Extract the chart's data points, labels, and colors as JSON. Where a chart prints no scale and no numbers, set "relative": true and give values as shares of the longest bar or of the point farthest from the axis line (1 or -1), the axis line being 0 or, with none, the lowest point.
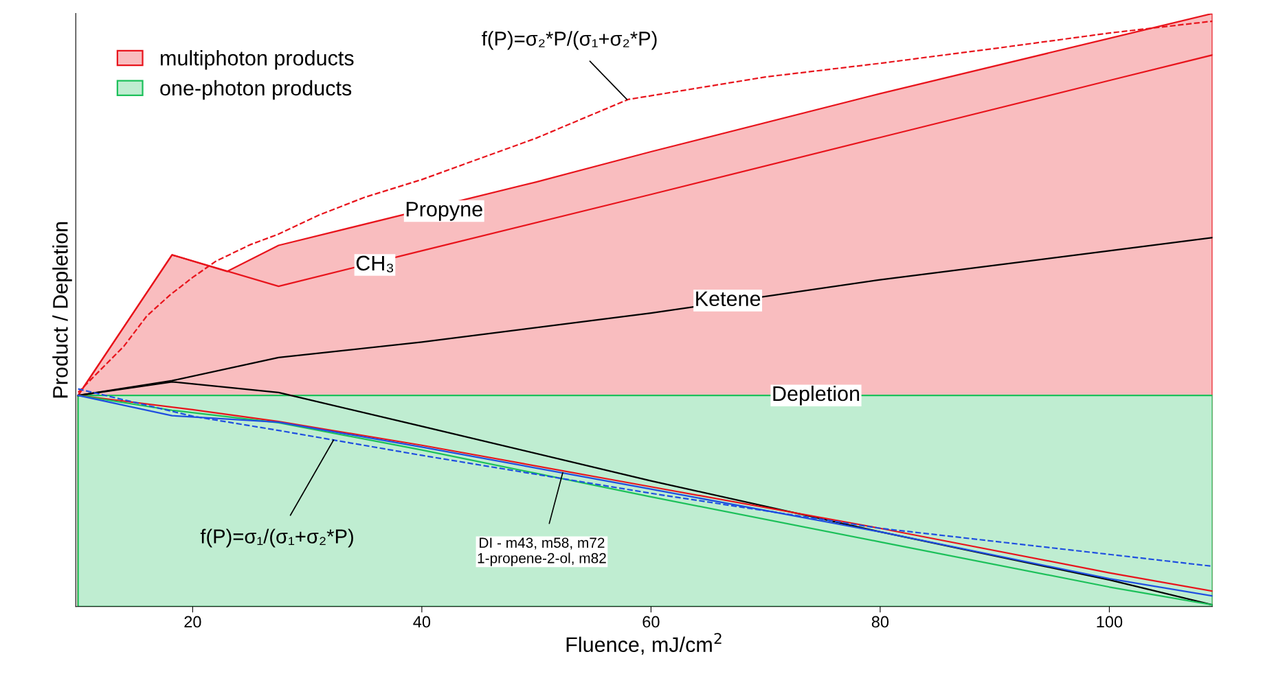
{
  "chart_data": {
    "type": "line",
    "relative": true,
    "xlabel": "Fluence, mJ/cm$^{2}$",
    "ylabel": "Product / Depletion",
    "xlim": [
      9.8,
      109
    ],
    "xticks": [
      20,
      40,
      60,
      80,
      100
    ],
    "grid": false,
    "legend": "top left",
    "line_style": "solid",
    "marker": "none",
    "tick_labels": "x",
    "series": [
      {
        "name": "multiphoton products",
        "type": "area",
        "color": "#e8141c",
        "x": [
          10,
          18.2,
          23,
          27.5,
          50,
          60,
          80,
          100,
          109
        ],
        "values": [
          0.356,
          0.593,
          0.565,
          0.609,
          0.716,
          0.767,
          0.865,
          0.958,
          1.0
        ]
      },
      {
        "name": "one-photon products",
        "type": "area",
        "color": "#1cc05a",
        "x": [
          10,
          109
        ],
        "values": [
          0.356,
          0.356
        ]
      },
      {
        "color": "#e8141c",
        "x": [
          10,
          18.2,
          27.5,
          40,
          60,
          80,
          100,
          109
        ],
        "values": [
          0.356,
          0.593,
          0.54,
          0.6,
          0.695,
          0.791,
          0.887,
          0.93
        ]
      },
      {
        "color": "#000000",
        "x": [
          10,
          18.2,
          27.5,
          40,
          60,
          80,
          100,
          109
        ],
        "values": [
          0.356,
          0.381,
          0.42,
          0.446,
          0.495,
          0.551,
          0.6,
          0.622
        ]
      },
      {
        "color": "#000000",
        "x": [
          10,
          18.2,
          27.5,
          40,
          60,
          80,
          100,
          109
        ],
        "values": [
          0.356,
          0.379,
          0.361,
          0.304,
          0.212,
          0.126,
          0.045,
          0.003
        ]
      },
      {
        "color": "#e8141c",
        "x": [
          10,
          20,
          27.5,
          40,
          60,
          80,
          100,
          109
        ],
        "values": [
          0.356,
          0.332,
          0.312,
          0.272,
          0.202,
          0.132,
          0.057,
          0.026
        ]
      },
      {
        "color": "#1cc05a",
        "x": [
          10,
          18.2,
          27.5,
          40,
          60,
          80,
          100,
          109
        ],
        "values": [
          0.356,
          0.331,
          0.31,
          0.264,
          0.185,
          0.109,
          0.033,
          0.003
        ]
      },
      {
        "color": "#1f4fe0",
        "x": [
          10,
          18.2,
          27.5,
          40,
          60,
          80,
          100,
          109
        ],
        "values": [
          0.356,
          0.322,
          0.311,
          0.269,
          0.198,
          0.126,
          0.047,
          0.018
        ]
      },
      {
        "color": "#e8141c",
        "line_style": "dashed",
        "x": [
          10,
          12,
          14,
          16,
          18,
          20,
          22,
          25,
          27.5,
          31,
          35,
          40,
          50,
          58,
          70,
          80,
          90,
          100,
          109
        ],
        "values": [
          0.361,
          0.4,
          0.439,
          0.49,
          0.525,
          0.555,
          0.582,
          0.61,
          0.628,
          0.66,
          0.69,
          0.72,
          0.79,
          0.855,
          0.893,
          0.916,
          0.941,
          0.967,
          0.987
        ]
      },
      {
        "color": "#1f4fe0",
        "line_style": "dashed",
        "x": [
          10,
          20,
          27.5,
          40,
          60,
          80,
          100,
          109
        ],
        "values": [
          0.367,
          0.321,
          0.297,
          0.255,
          0.191,
          0.132,
          0.088,
          0.068
        ]
      }
    ],
    "annotations": [
      "Propyne",
      {
        "text": "CH₃",
        "x": 35.9,
        "y": 0.576
      },
      {
        "text": "Ketene",
        "x": 66.7,
        "y": 0.516
      },
      {
        "text": "Depletion",
        "x": 74.4,
        "y": 0.356
      },
      {
        "text": "f(P)=σ₂*P/(σ₁+σ₂*P)",
        "x": 57.9,
        "y": 0.855
      },
      {
        "text": "f(P)=σ₁/(σ₁+σ₂*P)",
        "x": 32.3,
        "y": 0.281
      },
      {
        "text": "DI - m43, m58, m72\n1-propene-2-ol, m82",
        "x": 52.3,
        "y": 0.226
      }
    ]
  }
}
